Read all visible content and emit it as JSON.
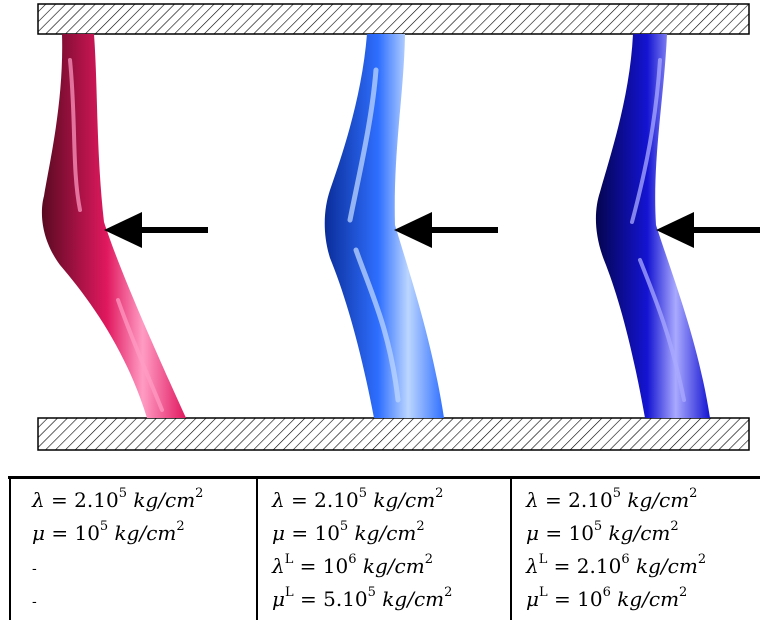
{
  "tubes": [
    {
      "color": "#e0185e",
      "dark": "#5a0a22",
      "light": "#ff9cc4"
    },
    {
      "color": "#2f6fff",
      "dark": "#0a2d99",
      "light": "#bcd6ff"
    },
    {
      "color": "#1414d2",
      "dark": "#040450",
      "light": "#a9a9ff"
    }
  ],
  "table": {
    "columns": [
      [
        {
          "sym": "λ",
          "sup": "",
          "eq": " = 2.10",
          "exp": "5",
          "unit": " kg/cm",
          "unit_exp": "2"
        },
        {
          "sym": "μ",
          "sup": "",
          "eq": " = 10",
          "exp": "5",
          "unit": " kg/cm",
          "unit_exp": "2"
        },
        {
          "dash": "-"
        },
        {
          "dash": "-"
        }
      ],
      [
        {
          "sym": "λ",
          "sup": "",
          "eq": " = 2.10",
          "exp": "5",
          "unit": " kg/cm",
          "unit_exp": "2"
        },
        {
          "sym": "μ",
          "sup": "",
          "eq": " = 10",
          "exp": "5",
          "unit": " kg/cm",
          "unit_exp": "2"
        },
        {
          "sym": "λ",
          "sup": "L",
          "eq": " = 10",
          "exp": "6",
          "unit": " kg/cm",
          "unit_exp": "2"
        },
        {
          "sym": "μ",
          "sup": "L",
          "eq": " = 5.10",
          "exp": "5",
          "unit": " kg/cm",
          "unit_exp": "2"
        }
      ],
      [
        {
          "sym": "λ",
          "sup": "",
          "eq": " = 2.10",
          "exp": "5",
          "unit": " kg/cm",
          "unit_exp": "2"
        },
        {
          "sym": "μ",
          "sup": "",
          "eq": " = 10",
          "exp": "5",
          "unit": " kg/cm",
          "unit_exp": "2"
        },
        {
          "sym": "λ",
          "sup": "L",
          "eq": " = 2.10",
          "exp": "6",
          "unit": " kg/cm",
          "unit_exp": "2"
        },
        {
          "sym": "μ",
          "sup": "L",
          "eq": " = 10",
          "exp": "6",
          "unit": " kg/cm",
          "unit_exp": "2"
        }
      ]
    ]
  }
}
